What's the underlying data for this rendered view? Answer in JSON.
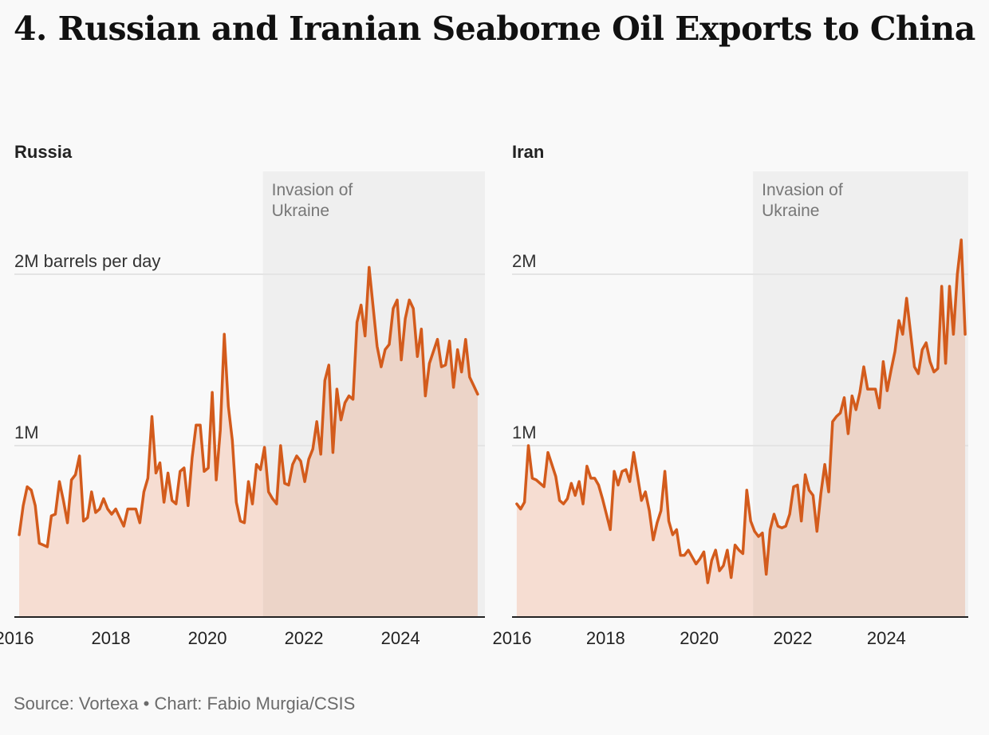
{
  "title": "4. Russian and Iranian Seaborne Oil Exports to China",
  "source": "Source: Vortexa • Chart: Fabio Murgia/CSIS",
  "colors": {
    "line": "#d35b1c",
    "fill_before": "#f6ddd2",
    "fill_after": "#ecd4c8",
    "shade": "#efefef",
    "grid": "#e4e4e4",
    "axis": "#222222",
    "annotation_text": "#777777"
  },
  "chart_data": [
    {
      "type": "area",
      "panel": "Russia",
      "title": "Russia",
      "xlabel": "",
      "ylabel": "",
      "xlim": [
        2016.0,
        2025.75
      ],
      "ylim": [
        0,
        2.0
      ],
      "x_ticks": [
        "2016",
        "2018",
        "2020",
        "2022",
        "2024"
      ],
      "y_ticks": [
        {
          "value": 1.0,
          "label": "1M"
        },
        {
          "value": 2.0,
          "label": "2M barrels per day"
        }
      ],
      "annotation": {
        "start": 2021.15,
        "end": 2025.75,
        "line1": "Invasion of",
        "line2": "Ukraine"
      },
      "start": 2016.1,
      "step": 0.08333,
      "series": [
        {
          "name": "Russia",
          "values": [
            0.48,
            0.65,
            0.76,
            0.74,
            0.65,
            0.43,
            0.42,
            0.41,
            0.59,
            0.6,
            0.79,
            0.68,
            0.55,
            0.8,
            0.83,
            0.94,
            0.56,
            0.58,
            0.73,
            0.61,
            0.63,
            0.69,
            0.63,
            0.6,
            0.63,
            0.58,
            0.53,
            0.63,
            0.63,
            0.63,
            0.55,
            0.73,
            0.81,
            1.17,
            0.84,
            0.9,
            0.67,
            0.84,
            0.68,
            0.66,
            0.85,
            0.87,
            0.65,
            0.93,
            1.12,
            1.12,
            0.85,
            0.87,
            1.31,
            0.8,
            1.09,
            1.65,
            1.23,
            1.03,
            0.67,
            0.56,
            0.55,
            0.79,
            0.66,
            0.89,
            0.86,
            0.99,
            0.73,
            0.69,
            0.66,
            1.0,
            0.78,
            0.77,
            0.89,
            0.94,
            0.91,
            0.79,
            0.92,
            0.98,
            1.14,
            0.95,
            1.38,
            1.47,
            0.96,
            1.33,
            1.15,
            1.25,
            1.29,
            1.27,
            1.72,
            1.82,
            1.64,
            2.04,
            1.81,
            1.58,
            1.46,
            1.56,
            1.59,
            1.8,
            1.85,
            1.5,
            1.74,
            1.85,
            1.8,
            1.52,
            1.68,
            1.29,
            1.48,
            1.55,
            1.62,
            1.46,
            1.47,
            1.61,
            1.34,
            1.56,
            1.43,
            1.62,
            1.4,
            1.35,
            1.3
          ]
        }
      ]
    },
    {
      "type": "area",
      "panel": "Iran",
      "title": "Iran",
      "xlabel": "",
      "ylabel": "",
      "xlim": [
        2016.0,
        2025.75
      ],
      "ylim": [
        0,
        2.0
      ],
      "x_ticks": [
        "2016",
        "2018",
        "2020",
        "2022",
        "2024"
      ],
      "y_ticks": [
        {
          "value": 1.0,
          "label": "1M"
        },
        {
          "value": 2.0,
          "label": "2M"
        }
      ],
      "annotation": {
        "start": 2021.15,
        "end": 2025.75,
        "line1": "Invasion of",
        "line2": "Ukraine"
      },
      "start": 2016.1,
      "step": 0.08333,
      "series": [
        {
          "name": "Iran",
          "values": [
            0.66,
            0.63,
            0.67,
            1.0,
            0.81,
            0.8,
            0.78,
            0.76,
            0.96,
            0.89,
            0.82,
            0.68,
            0.66,
            0.69,
            0.78,
            0.71,
            0.79,
            0.66,
            0.88,
            0.81,
            0.81,
            0.77,
            0.69,
            0.6,
            0.51,
            0.85,
            0.77,
            0.85,
            0.86,
            0.79,
            0.96,
            0.82,
            0.68,
            0.73,
            0.62,
            0.45,
            0.55,
            0.62,
            0.85,
            0.56,
            0.48,
            0.51,
            0.36,
            0.36,
            0.39,
            0.35,
            0.31,
            0.34,
            0.38,
            0.2,
            0.33,
            0.39,
            0.27,
            0.3,
            0.39,
            0.23,
            0.42,
            0.39,
            0.37,
            0.74,
            0.56,
            0.5,
            0.47,
            0.49,
            0.25,
            0.51,
            0.6,
            0.53,
            0.52,
            0.53,
            0.6,
            0.76,
            0.77,
            0.56,
            0.83,
            0.74,
            0.71,
            0.5,
            0.72,
            0.89,
            0.73,
            1.14,
            1.17,
            1.19,
            1.28,
            1.07,
            1.29,
            1.21,
            1.31,
            1.46,
            1.33,
            1.33,
            1.33,
            1.22,
            1.49,
            1.32,
            1.44,
            1.55,
            1.73,
            1.65,
            1.86,
            1.66,
            1.46,
            1.42,
            1.56,
            1.6,
            1.49,
            1.43,
            1.45,
            1.93,
            1.48,
            1.93,
            1.65,
            2.0,
            2.2,
            1.65
          ]
        }
      ]
    }
  ]
}
